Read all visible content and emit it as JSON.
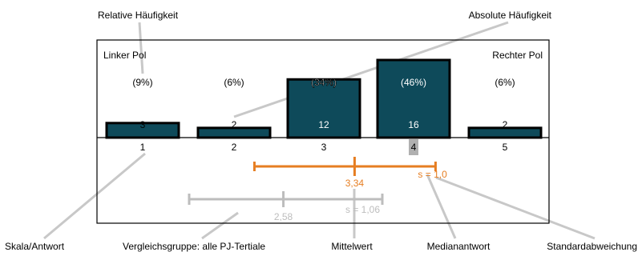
{
  "callouts": {
    "relative_frequency": "Relative Häufigkeit",
    "absolute_frequency": "Absolute Häufigkeit",
    "scale_answer": "Skala/Antwort",
    "comparison_group": "Vergleichsgruppe: alle PJ-Tertiale",
    "mean": "Mittelwert",
    "median_answer": "Medianantwort",
    "standard_deviation": "Standardabweichung"
  },
  "poles": {
    "left": "Linker Pol",
    "right": "Rechter Pol"
  },
  "chart_data": {
    "type": "bar",
    "categories": [
      "1",
      "2",
      "3",
      "4",
      "5"
    ],
    "values": [
      3,
      2,
      12,
      16,
      2
    ],
    "percent_labels": [
      "(9%)",
      "(6%)",
      "(34%)",
      "(46%)",
      "(6%)"
    ],
    "count_labels": [
      "3",
      "2",
      "12",
      "16",
      "2"
    ],
    "median_category": "4",
    "ylim": [
      0,
      16
    ],
    "colors": {
      "bar_fill": "#0e4a5a",
      "bar_stroke": "#000000",
      "mean_marker": "#e67e22",
      "comparison_marker": "#bdbdbd",
      "median_highlight": "#b0b0b0",
      "leader_lines": "#c8c8c8"
    },
    "mean": {
      "value": 3.34,
      "label": "3,34",
      "sd": 1.0,
      "sd_label": "s = 1,0"
    },
    "comparison": {
      "value": 2.58,
      "label": "2,58",
      "sd": 1.06,
      "sd_label": "s = 1,06"
    }
  }
}
